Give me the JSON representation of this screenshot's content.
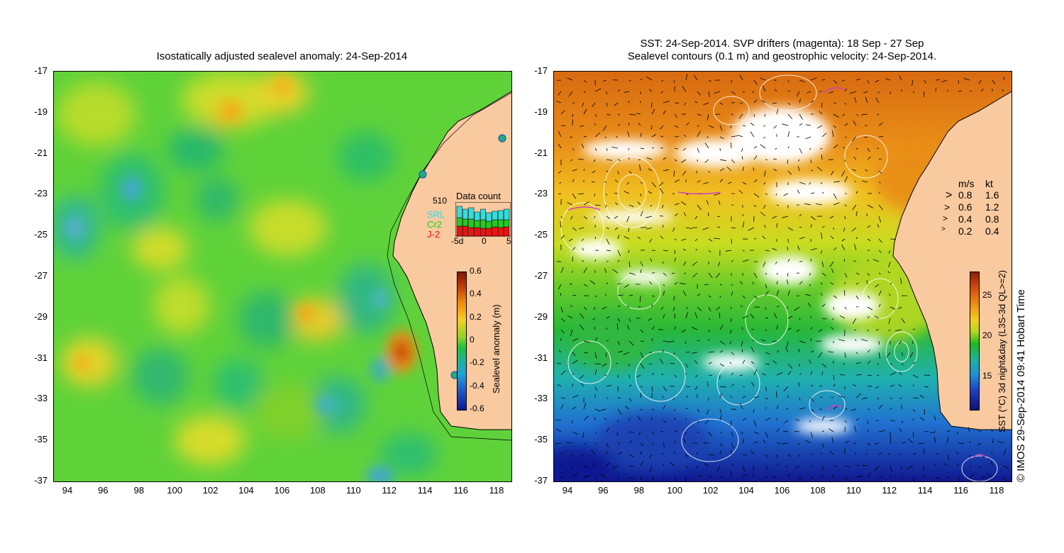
{
  "left_panel": {
    "title": "Isostatically adjusted sealevel anomaly: 24-Sep-2014",
    "y_ticks": [
      "-17",
      "-19",
      "-21",
      "-23",
      "-25",
      "-27",
      "-29",
      "-31",
      "-33",
      "-35",
      "-37"
    ],
    "x_ticks": [
      "94",
      "96",
      "98",
      "100",
      "102",
      "104",
      "106",
      "108",
      "110",
      "112",
      "114",
      "116",
      "118"
    ],
    "colorbar": {
      "label": "Sealevel anomaly (m)",
      "ticks": [
        "0.6",
        "0.4",
        "0.2",
        "0",
        "-0.2",
        "-0.4",
        "-0.6"
      ],
      "range": [
        -0.6,
        0.6
      ]
    },
    "data_count": {
      "title": "Data count",
      "max_label": "510",
      "legend": [
        "SRL",
        "Cr2",
        "J-2"
      ],
      "x_ticks": [
        "-5d",
        "0",
        "5"
      ],
      "colors": {
        "SRL": "#33dddd",
        "Cr2": "#22cc22",
        "J-2": "#ee1111"
      }
    }
  },
  "right_panel": {
    "title_line1": "SST: 24-Sep-2014. SVP drifters (magenta): 18 Sep - 27 Sep",
    "title_line2": "Sealevel contours (0.1 m) and geostrophic velocity: 24-Sep-2014.",
    "y_ticks": [
      "-17",
      "-19",
      "-21",
      "-23",
      "-25",
      "-27",
      "-29",
      "-31",
      "-33",
      "-35",
      "-37"
    ],
    "x_ticks": [
      "94",
      "96",
      "98",
      "100",
      "102",
      "104",
      "106",
      "108",
      "110",
      "112",
      "114",
      "116",
      "118"
    ],
    "velocity_legend": {
      "header_ms": "m/s",
      "header_kt": "kt",
      "rows": [
        {
          "ms": "0.8",
          "kt": "1.6"
        },
        {
          "ms": "0.6",
          "kt": "1.2"
        },
        {
          "ms": "0.4",
          "kt": "0.8"
        },
        {
          "ms": "0.2",
          "kt": "0.4"
        }
      ]
    },
    "colorbar": {
      "label": "SST (°C) 3d night&day (L3S-3d QL>=2)",
      "ticks": [
        "25",
        "20",
        "15"
      ],
      "range": [
        11,
        28
      ]
    }
  },
  "credit": "© IMOS 29-Sep-2014 09:41 Hobart Time",
  "colors": {
    "land": "#f9c9a0",
    "coast": "#000000"
  }
}
